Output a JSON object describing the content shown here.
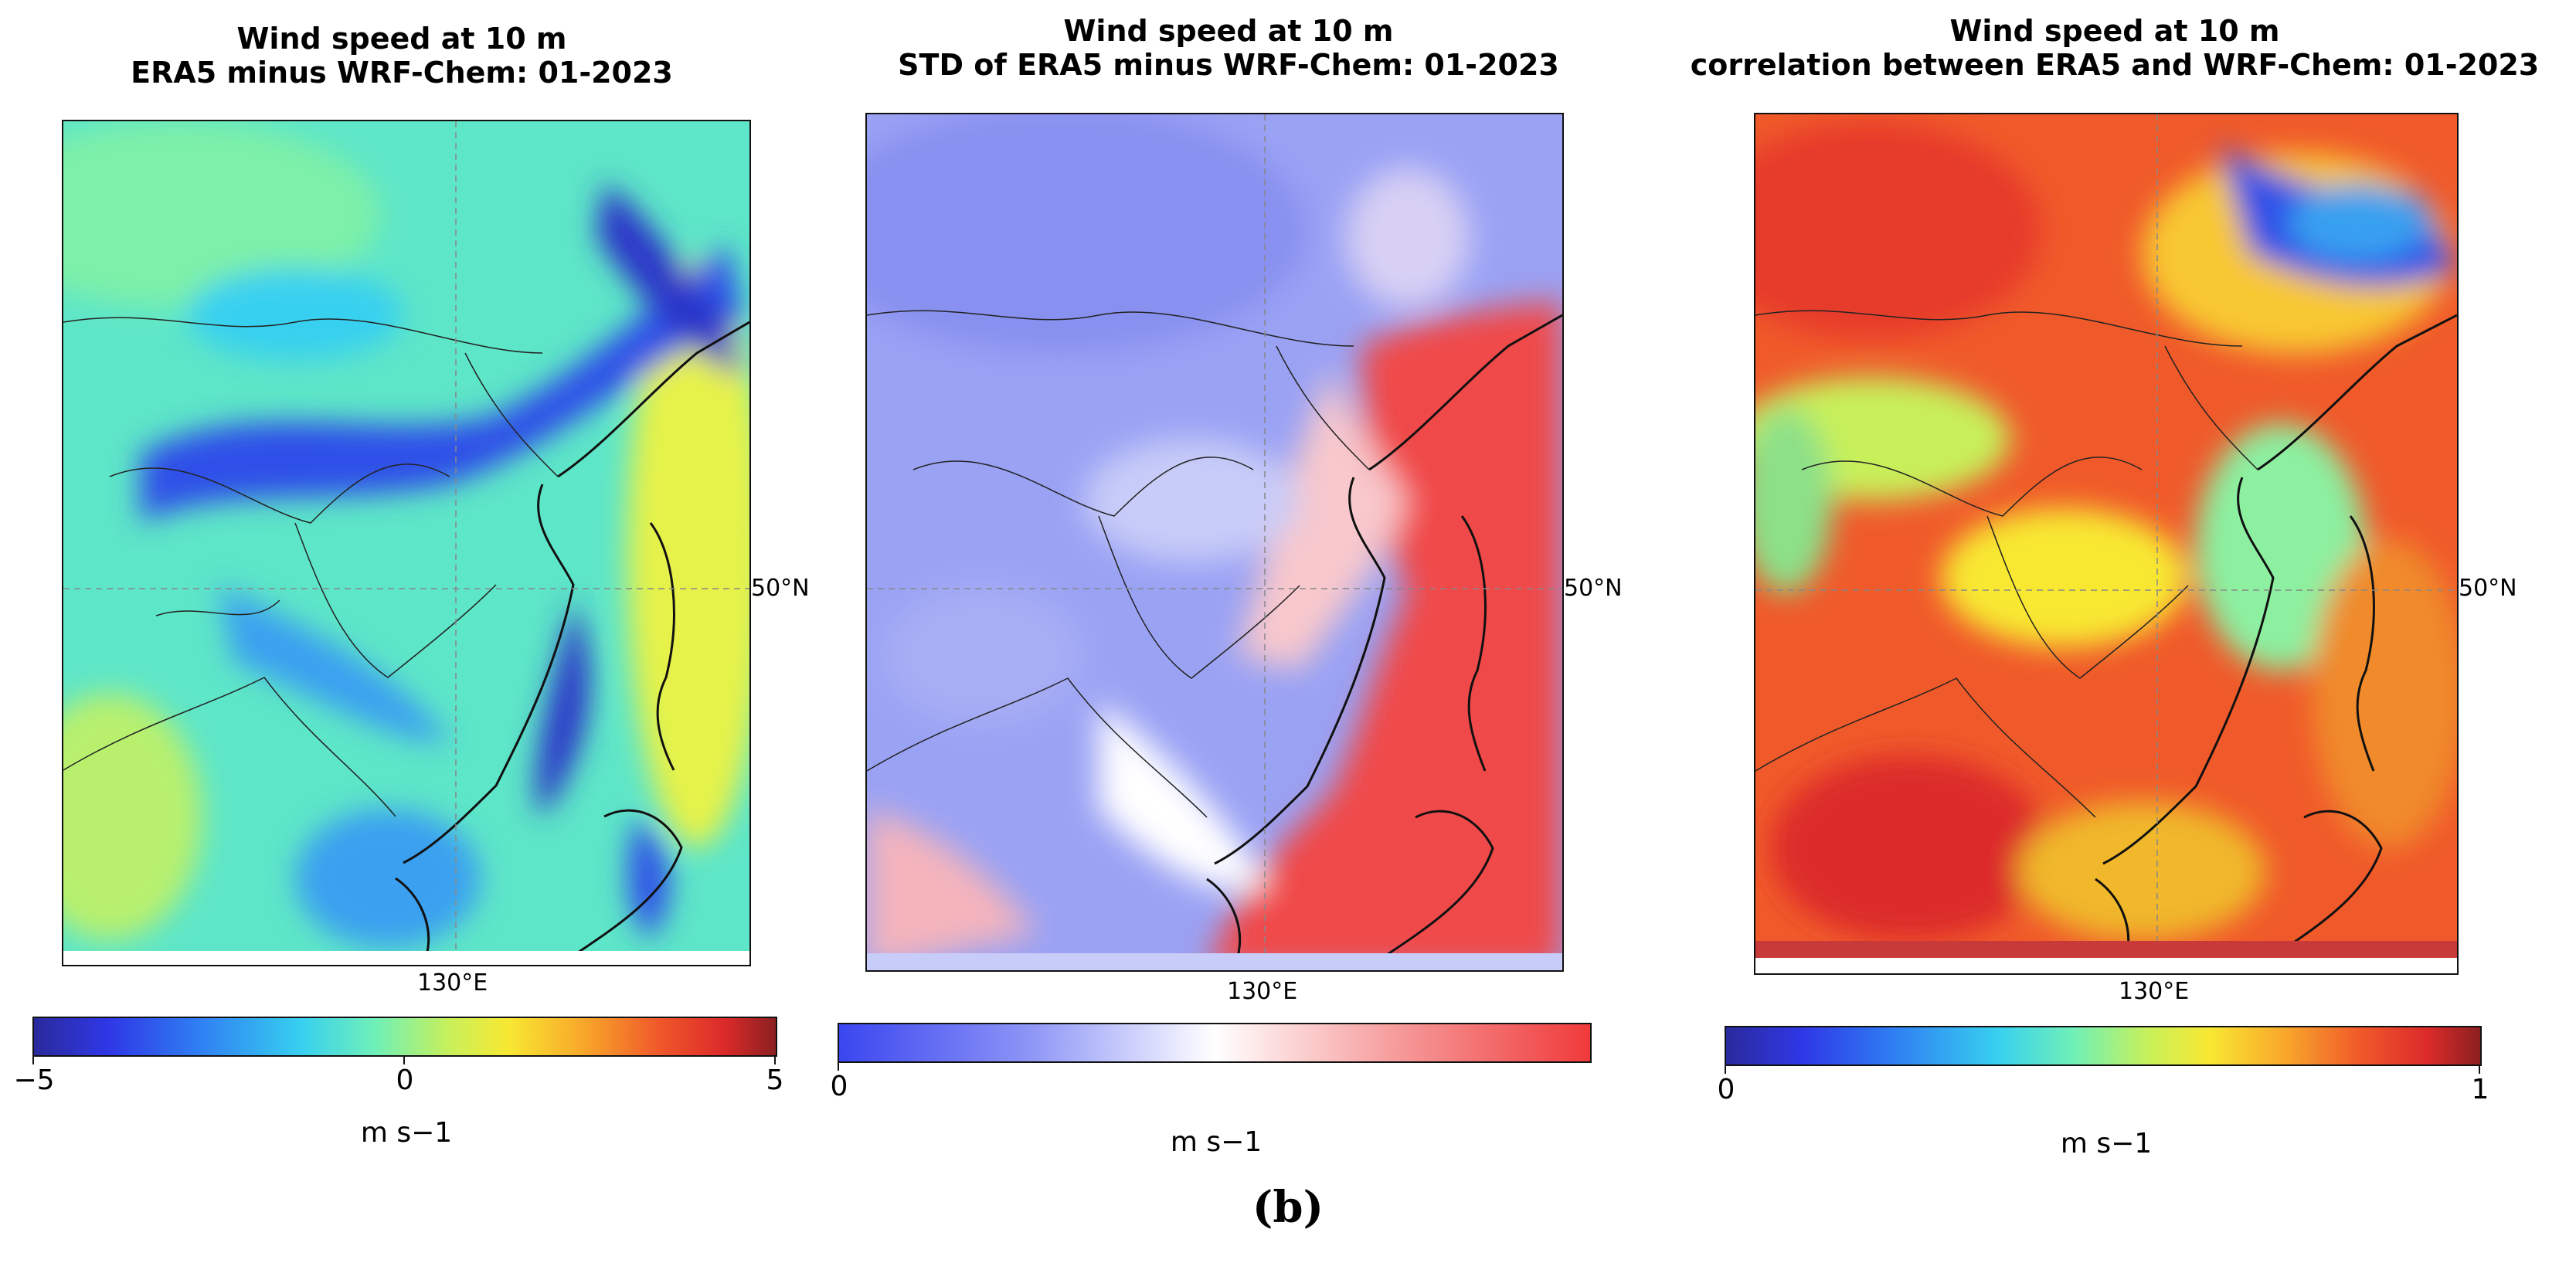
{
  "panels": [
    {
      "title_line1": "Wind speed at 10 m",
      "title_line2": "ERA5 minus WRF-Chem: 01-2023",
      "lon_label": "130°E",
      "lat_label": "50°N",
      "colorbar": {
        "colormap": "jet",
        "ticks": [
          "−5",
          "0",
          "5"
        ],
        "unit": "m s−1",
        "range": [
          -5,
          5
        ]
      }
    },
    {
      "title_line1": "Wind speed at 10 m",
      "title_line2": "STD of ERA5 minus WRF-Chem: 01-2023",
      "lon_label": "130°E",
      "lat_label": "50°N",
      "colorbar": {
        "colormap": "bwr",
        "ticks": [
          "0"
        ],
        "unit": "m s−1",
        "range": [
          0,
          null
        ]
      }
    },
    {
      "title_line1": "Wind speed at 10 m",
      "title_line2": "correlation between ERA5 and WRF-Chem: 01-2023",
      "lon_label": "130°E",
      "lat_label": "50°N",
      "colorbar": {
        "colormap": "jet",
        "ticks": [
          "0",
          "1"
        ],
        "unit": "m s−1",
        "range": [
          0,
          1
        ]
      }
    }
  ],
  "figure_label": "(b)",
  "colors": {
    "jet_low": "#2a2a9c",
    "jet_mid": "#37d0f0",
    "jet_high": "#8c2020",
    "bwr_low": "#3a46f0",
    "bwr_high": "#f03a3a"
  }
}
